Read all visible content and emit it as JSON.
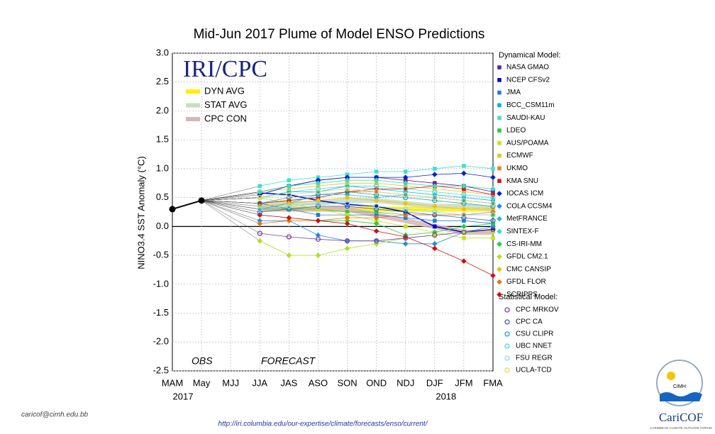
{
  "chart_data": {
    "type": "plume",
    "title": "Mid-Jun 2017 Plume of Model ENSO Predictions",
    "ylabel": "NINO3.4 SST Anomaly (°C)",
    "logo_text": "IRI/CPC",
    "annotations": [
      "OBS",
      "FORECAST"
    ],
    "dynamical_legend_title": "Dynamical Model:",
    "statistical_legend_title": "Statistical Model:",
    "categories": [
      "MAM",
      "May",
      "MJJ",
      "JJA",
      "JAS",
      "ASO",
      "SON",
      "OND",
      "NDJ",
      "DJF",
      "JFM",
      "FMA"
    ],
    "year_labels": [
      "2017",
      null,
      null,
      null,
      null,
      null,
      null,
      null,
      null,
      "2018",
      null,
      null
    ],
    "ylim": [
      -2.5,
      3.0
    ],
    "yticks": [
      {
        "value": -2.5,
        "label": "-2.5"
      },
      {
        "value": -2.0,
        "label": "-2.0"
      },
      -1.5,
      {
        "value": -1.0,
        "label": "-1.0"
      },
      -0.5,
      {
        "value": 0,
        "label": "0.0"
      },
      0.5,
      {
        "value": 1.0,
        "label": "1.0"
      },
      1.5,
      {
        "value": 2.0,
        "label": "2.0"
      },
      2.5,
      {
        "value": 3.0,
        "label": "3.0"
      }
    ],
    "grid": true,
    "observed": {
      "color": "#000000",
      "values": [
        0.3,
        0.45,
        null,
        null,
        null,
        null,
        null,
        null,
        null,
        null,
        null,
        null
      ]
    },
    "series": [
      {
        "name": "DYN AVG",
        "group": "average",
        "color": "#ffee00",
        "values": [
          null,
          null,
          null,
          0.3,
          0.3,
          0.3,
          0.3,
          0.3,
          0.3,
          0.3,
          0.3,
          0.3
        ]
      },
      {
        "name": "STAT AVG",
        "group": "average",
        "color": "#c8dcc0",
        "values": [
          null,
          null,
          null,
          0.35,
          0.4,
          0.4,
          0.45,
          0.45,
          0.4,
          0.35,
          0.35,
          0.3
        ]
      },
      {
        "name": "CPC CON",
        "group": "average",
        "color": "#d8b4b8",
        "values": [
          null,
          null,
          null,
          0.3,
          0.3,
          0.3,
          0.3,
          0.2,
          0.1,
          0.0,
          -0.1,
          -0.1
        ]
      },
      {
        "name": "NASA GMAO",
        "group": "dynamical",
        "marker": "square",
        "color": "#6a1b9a",
        "values": [
          null,
          null,
          null,
          0.6,
          0.7,
          0.8,
          0.85,
          0.85,
          0.8,
          0.75,
          0.7,
          0.6
        ]
      },
      {
        "name": "NCEP CFSv2",
        "group": "dynamical",
        "marker": "square",
        "color": "#0000cc",
        "values": [
          null,
          null,
          null,
          0.58,
          0.55,
          0.45,
          0.38,
          0.35,
          0.25,
          0.0,
          -0.1,
          -0.05
        ]
      },
      {
        "name": "JMA",
        "group": "dynamical",
        "marker": "square",
        "color": "#1e7fd8",
        "values": [
          null,
          null,
          null,
          0.4,
          0.3,
          0.2,
          0.2,
          0.2,
          0.15,
          0.1,
          0.1,
          0.05
        ]
      },
      {
        "name": "BCC_CSM11m",
        "group": "dynamical",
        "marker": "square",
        "color": "#00b0f0",
        "values": [
          null,
          null,
          null,
          0.5,
          0.6,
          0.6,
          0.7,
          0.65,
          0.6,
          0.55,
          0.5,
          0.45
        ]
      },
      {
        "name": "SAUDI-KAU",
        "group": "dynamical",
        "marker": "square",
        "color": "#40e0d0",
        "values": [
          null,
          null,
          null,
          0.7,
          0.8,
          0.85,
          0.9,
          0.95,
          0.95,
          1.0,
          1.05,
          1.0
        ]
      },
      {
        "name": "LDEO",
        "group": "dynamical",
        "marker": "square",
        "color": "#22cc44",
        "values": [
          null,
          null,
          null,
          0.3,
          0.3,
          0.3,
          0.25,
          0.25,
          0.2,
          0.2,
          0.2,
          0.2
        ]
      },
      {
        "name": "AUS/POAMA",
        "group": "dynamical",
        "marker": "square",
        "color": "#bfe61a",
        "values": [
          null,
          null,
          null,
          0.5,
          0.4,
          0.3,
          0.2,
          0.1,
          0.0,
          -0.1,
          -0.2,
          -0.2
        ]
      },
      {
        "name": "ECMWF",
        "group": "dynamical",
        "marker": "square",
        "color": "#f0c020",
        "values": [
          null,
          null,
          null,
          0.6,
          0.65,
          0.7,
          0.75,
          0.75,
          0.7,
          0.65,
          0.6,
          0.55
        ]
      },
      {
        "name": "UKMO",
        "group": "dynamical",
        "marker": "square",
        "color": "#f08020",
        "values": [
          null,
          null,
          null,
          0.4,
          0.45,
          0.5,
          0.6,
          0.6,
          0.55,
          0.5,
          0.45,
          0.4
        ]
      },
      {
        "name": "KMA SNU",
        "group": "dynamical",
        "marker": "square",
        "color": "#dd1111",
        "values": [
          null,
          null,
          null,
          0.4,
          0.45,
          0.5,
          0.6,
          0.65,
          0.65,
          0.7,
          0.65,
          0.55
        ]
      },
      {
        "name": "IOCAS ICM",
        "group": "dynamical",
        "marker": "diamond",
        "color": "#0022cc",
        "values": [
          null,
          null,
          null,
          0.55,
          0.7,
          0.8,
          0.85,
          0.85,
          0.85,
          0.9,
          0.92,
          0.85
        ]
      },
      {
        "name": "COLA CCSM4",
        "group": "dynamical",
        "marker": "diamond",
        "color": "#1f8fe0",
        "values": [
          null,
          null,
          null,
          0.1,
          0.1,
          -0.15,
          -0.25,
          -0.25,
          -0.3,
          -0.3,
          -0.1,
          0.0
        ]
      },
      {
        "name": "MetFRANCE",
        "group": "dynamical",
        "marker": "diamond",
        "color": "#20b8e0",
        "values": [
          null,
          null,
          null,
          0.3,
          0.4,
          0.55,
          0.55,
          0.5,
          0.55,
          0.5,
          0.45,
          0.4
        ]
      },
      {
        "name": "SINTEX-F",
        "group": "dynamical",
        "marker": "diamond",
        "color": "#30e0c0",
        "values": [
          null,
          null,
          null,
          0.6,
          0.7,
          0.75,
          0.8,
          0.8,
          0.75,
          0.7,
          0.7,
          0.65
        ]
      },
      {
        "name": "CS-IRI-MM",
        "group": "dynamical",
        "marker": "diamond",
        "color": "#20d040",
        "values": [
          null,
          null,
          null,
          0.2,
          0.15,
          0.1,
          0.1,
          0.05,
          -0.15,
          -0.1,
          0.0,
          0.05
        ]
      },
      {
        "name": "GFDL CM2.1",
        "group": "dynamical",
        "marker": "diamond",
        "color": "#b0e020",
        "values": [
          null,
          null,
          null,
          -0.25,
          -0.5,
          -0.5,
          -0.38,
          -0.3,
          -0.2,
          -0.15,
          -0.1,
          -0.1
        ]
      },
      {
        "name": "CMC CANSIP",
        "group": "dynamical",
        "marker": "diamond",
        "color": "#f0c000",
        "values": [
          null,
          null,
          null,
          0.35,
          0.4,
          0.45,
          0.5,
          0.45,
          0.4,
          0.35,
          0.3,
          0.3
        ]
      },
      {
        "name": "GFDL FLOR",
        "group": "dynamical",
        "marker": "diamond",
        "color": "#f07010",
        "values": [
          null,
          null,
          null,
          0.05,
          0.1,
          0.1,
          0.15,
          0.15,
          0.2,
          0.2,
          0.2,
          0.25
        ]
      },
      {
        "name": "SCRIPPS",
        "group": "dynamical",
        "marker": "diamond",
        "color": "#d01010",
        "values": [
          null,
          null,
          null,
          0.2,
          0.15,
          0.1,
          0.05,
          -0.08,
          -0.18,
          -0.38,
          -0.6,
          -0.85
        ]
      },
      {
        "name": "CPC MRKOV",
        "group": "statistical",
        "marker": "circle",
        "color": "#8040a0",
        "values": [
          null,
          null,
          null,
          -0.12,
          -0.18,
          -0.22,
          -0.25,
          -0.25,
          -0.2,
          -0.15,
          -0.1,
          -0.05
        ]
      },
      {
        "name": "CPC CA",
        "group": "statistical",
        "marker": "circle",
        "color": "#4060c0",
        "values": [
          null,
          null,
          null,
          0.25,
          0.3,
          0.35,
          0.35,
          0.3,
          0.25,
          0.2,
          0.15,
          0.1
        ]
      },
      {
        "name": "CSU CLIPR",
        "group": "statistical",
        "marker": "circle",
        "color": "#20a0c0",
        "values": [
          null,
          null,
          null,
          0.4,
          0.5,
          0.55,
          0.6,
          0.55,
          0.5,
          0.45,
          0.4,
          0.35
        ]
      },
      {
        "name": "UBC NNET",
        "group": "statistical",
        "marker": "circle",
        "color": "#40e0e0",
        "values": [
          null,
          null,
          null,
          0.5,
          0.6,
          0.65,
          0.7,
          0.7,
          0.65,
          0.6,
          0.55,
          0.5
        ]
      },
      {
        "name": "FSU REGR",
        "group": "statistical",
        "marker": "circle",
        "color": "#80e0e0",
        "values": [
          null,
          null,
          null,
          0.3,
          0.35,
          0.4,
          0.4,
          0.35,
          0.3,
          0.25,
          0.2,
          0.2
        ]
      },
      {
        "name": "UCLA-TCD",
        "group": "statistical",
        "marker": "circle",
        "color": "#f0d060",
        "values": [
          null,
          null,
          null,
          0.5,
          0.55,
          0.6,
          0.65,
          0.6,
          0.55,
          0.5,
          0.45,
          0.4
        ]
      }
    ]
  },
  "footer": {
    "email": "caricof@cimh.edu.bb",
    "url": "http://iri.columbia.edu/our-expertise/climate/forecasts/enso/current/"
  },
  "logo": {
    "org": "CIMH",
    "name": "CariCOF",
    "tagline": "CARIBBEAN CLIMATE OUTLOOK FORUM"
  }
}
